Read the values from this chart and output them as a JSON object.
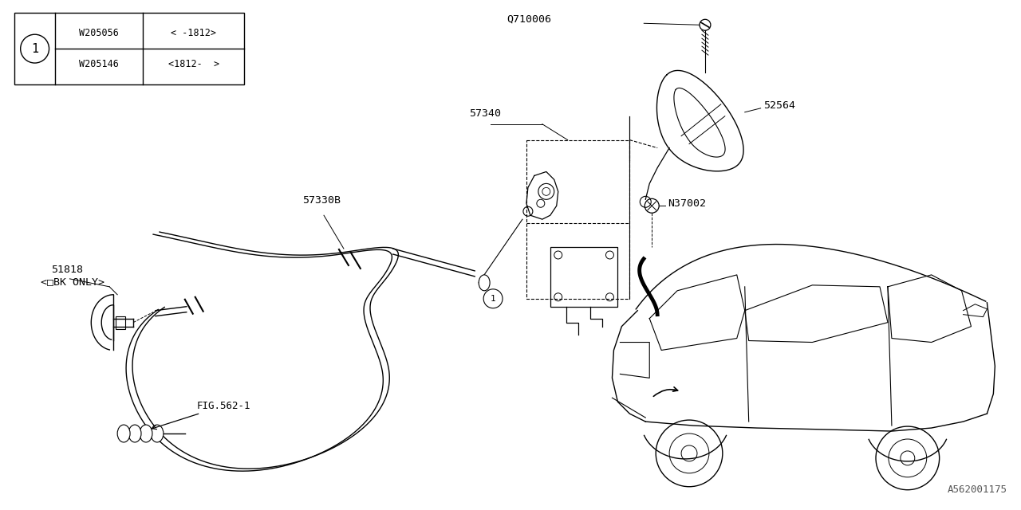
{
  "bg_color": "#ffffff",
  "line_color": "#000000",
  "watermark": "A562001175",
  "fig_width": 12.8,
  "fig_height": 6.4,
  "table": {
    "rows": [
      [
        "W205056",
        "< -1812>"
      ],
      [
        "W205146",
        "<1812-  >"
      ]
    ]
  }
}
